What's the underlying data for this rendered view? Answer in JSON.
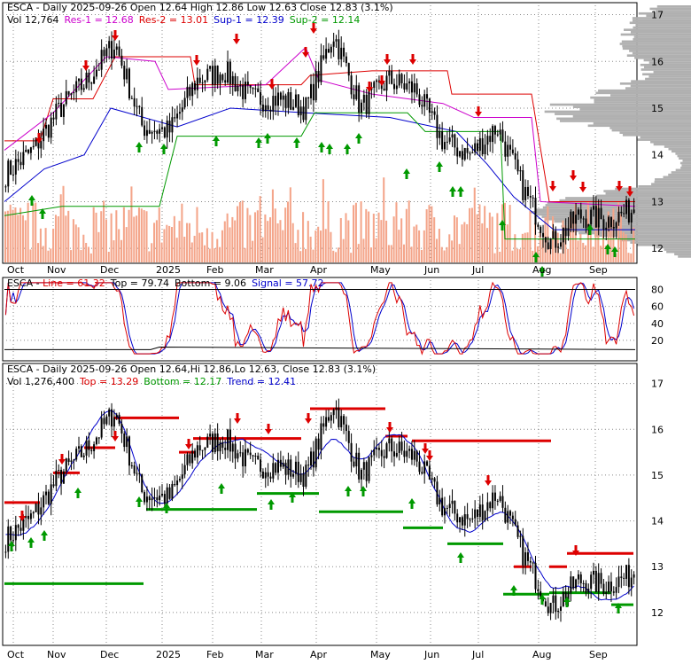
{
  "chart_data": [
    {
      "type": "candlestick",
      "panel": "price-support-resistance",
      "header": {
        "line1_prefix": "ESCA - Daily 2025-09-26 Open 12.64  High 12.86  Low 12.63  Close 12.83 (3.1%)",
        "vol_label": "Vol 12,764",
        "res1_label": "Res-1 = 12.68",
        "res2_label": "Res-2 = 13.01",
        "sup1_label": "Sup-1 = 12.39",
        "sup2_label": "Sup-2 = 12.14"
      },
      "colors": {
        "res1": "#cc00cc",
        "res2": "#dd0000",
        "sup1": "#0000cc",
        "sup2": "#009900",
        "volume": "#f4a58a",
        "profile": "#b0b0b0"
      },
      "ylim": [
        11.7,
        17.2
      ],
      "y_ticks": [
        12,
        13,
        14,
        15,
        16,
        17
      ],
      "x_ticks": [
        "Oct",
        "Nov",
        "Dec",
        "2025",
        "Feb",
        "Mar",
        "Apr",
        "May",
        "Jun",
        "Jul",
        "Aug",
        "Sep"
      ],
      "grid": true,
      "approx_path": [
        {
          "d": "Oct",
          "v": 13.6
        },
        {
          "d": "Oct-mid",
          "v": 14.1
        },
        {
          "d": "Nov",
          "v": 15.0
        },
        {
          "d": "Nov-mid",
          "v": 15.6
        },
        {
          "d": "Dec",
          "v": 16.4
        },
        {
          "d": "Dec-mid",
          "v": 14.6
        },
        {
          "d": "2025",
          "v": 14.5
        },
        {
          "d": "Jan-mid",
          "v": 15.6
        },
        {
          "d": "Feb",
          "v": 15.8
        },
        {
          "d": "Feb-mid",
          "v": 15.2
        },
        {
          "d": "Mar",
          "v": 15.2
        },
        {
          "d": "Mar-mid",
          "v": 15.0
        },
        {
          "d": "Apr",
          "v": 16.6
        },
        {
          "d": "Apr-mid",
          "v": 15.0
        },
        {
          "d": "May",
          "v": 15.6
        },
        {
          "d": "May-mid",
          "v": 15.4
        },
        {
          "d": "Jun",
          "v": 14.3
        },
        {
          "d": "Jun-mid",
          "v": 14.0
        },
        {
          "d": "Jul",
          "v": 14.6
        },
        {
          "d": "Jul-mid",
          "v": 13.2
        },
        {
          "d": "Aug",
          "v": 12.1
        },
        {
          "d": "Aug-mid",
          "v": 12.7
        },
        {
          "d": "Sep",
          "v": 12.6
        },
        {
          "d": "Sep-end",
          "v": 12.83
        }
      ]
    },
    {
      "type": "line",
      "panel": "stochastic-oscillator",
      "header": {
        "prefix": "ESCA - ",
        "line_label": "Line = 61.32",
        "top_label": "Top = 79.74",
        "bottom_label": "Bottom = 9.06",
        "signal_label": "Signal = 57.72"
      },
      "colors": {
        "line": "#dd0000",
        "signal": "#0000cc",
        "bands": "#000000"
      },
      "ylim": [
        0,
        90
      ],
      "y_ticks": [
        20,
        40,
        60,
        80
      ],
      "last": {
        "line": 61.32,
        "signal": 57.72,
        "top": 79.74,
        "bottom": 9.06
      }
    },
    {
      "type": "candlestick",
      "panel": "price-trend",
      "header": {
        "line1": "ESCA - Daily 2025-09-26 Open 12.64,Hi 12.86,Lo 12.63, Close 12.83 (3.1%)",
        "vol_label": "Vol 1,276,400",
        "top_label": "Top = 13.29",
        "bottom_label": "Bottom = 12.17",
        "trend_label": "Trend = 12.41"
      },
      "colors": {
        "top": "#dd0000",
        "bottom": "#009900",
        "trend": "#0000cc"
      },
      "ylim": [
        11.3,
        17.4
      ],
      "y_ticks": [
        12,
        13,
        14,
        15,
        16,
        17
      ],
      "x_ticks": [
        "Oct",
        "Nov",
        "Dec",
        "2025",
        "Feb",
        "Mar",
        "Apr",
        "May",
        "Jun",
        "Jul",
        "Aug",
        "Sep"
      ],
      "grid": true
    }
  ]
}
